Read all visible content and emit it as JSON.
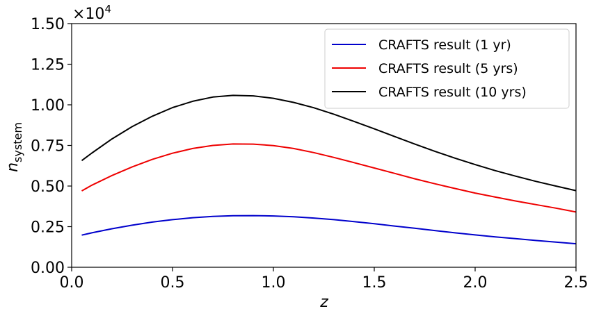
{
  "chart_data": {
    "type": "line",
    "xlabel": "z",
    "ylabel_main": "n",
    "ylabel_sub": "system",
    "y_multiplier_base": "×10",
    "y_multiplier_exp": "4",
    "xlim": [
      0.0,
      2.5
    ],
    "ylim": [
      0.0,
      1.5
    ],
    "x_ticks": [
      0.0,
      0.5,
      1.0,
      1.5,
      2.0,
      2.5
    ],
    "x_tick_labels": [
      "0.0",
      "0.5",
      "1.0",
      "1.5",
      "2.0",
      "2.5"
    ],
    "y_ticks": [
      0.0,
      0.25,
      0.5,
      0.75,
      1.0,
      1.25,
      1.5
    ],
    "y_tick_labels": [
      "0.00",
      "0.25",
      "0.50",
      "0.75",
      "1.00",
      "1.25",
      "1.50"
    ],
    "grid": false,
    "legend_position": "top-right",
    "x": [
      0.05,
      0.1,
      0.2,
      0.3,
      0.4,
      0.5,
      0.6,
      0.7,
      0.8,
      0.9,
      1.0,
      1.1,
      1.2,
      1.3,
      1.4,
      1.5,
      1.6,
      1.7,
      1.8,
      1.9,
      2.0,
      2.1,
      2.2,
      2.3,
      2.4,
      2.5
    ],
    "series": [
      {
        "name": "CRAFTS result (1 yr)",
        "color": "#0000cc",
        "values": [
          0.198,
          0.212,
          0.237,
          0.259,
          0.278,
          0.293,
          0.305,
          0.313,
          0.317,
          0.318,
          0.316,
          0.311,
          0.303,
          0.293,
          0.281,
          0.268,
          0.254,
          0.24,
          0.226,
          0.212,
          0.199,
          0.187,
          0.176,
          0.165,
          0.155,
          0.145
        ]
      },
      {
        "name": "CRAFTS result (5 yrs)",
        "color": "#ee0000",
        "values": [
          0.47,
          0.505,
          0.565,
          0.618,
          0.664,
          0.702,
          0.731,
          0.75,
          0.759,
          0.758,
          0.749,
          0.731,
          0.706,
          0.676,
          0.644,
          0.611,
          0.578,
          0.545,
          0.514,
          0.485,
          0.457,
          0.432,
          0.408,
          0.386,
          0.364,
          0.34
        ]
      },
      {
        "name": "CRAFTS result (10 yrs)",
        "color": "#000000",
        "values": [
          0.657,
          0.703,
          0.79,
          0.866,
          0.93,
          0.983,
          1.022,
          1.048,
          1.058,
          1.055,
          1.04,
          1.015,
          0.982,
          0.942,
          0.898,
          0.852,
          0.805,
          0.759,
          0.714,
          0.672,
          0.632,
          0.595,
          0.561,
          0.529,
          0.5,
          0.472
        ]
      }
    ]
  }
}
